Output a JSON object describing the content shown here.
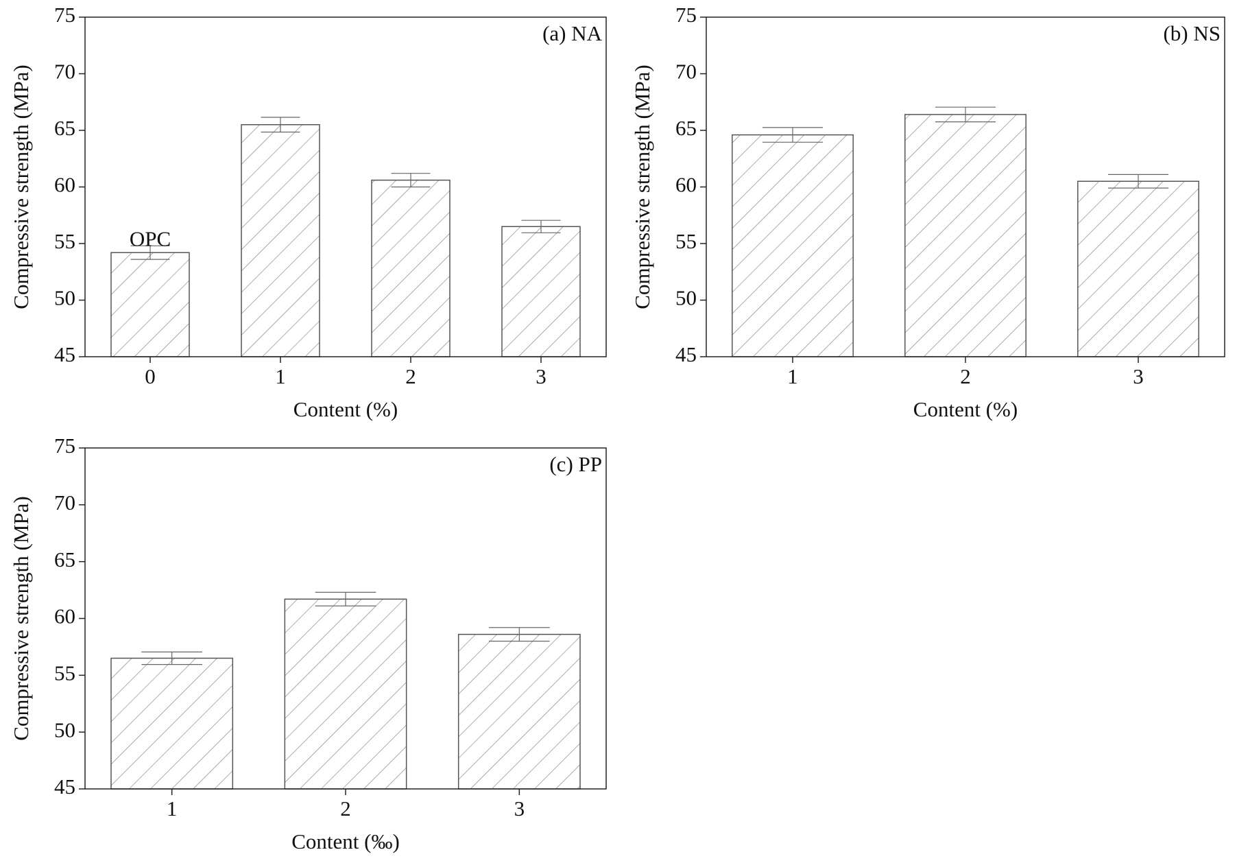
{
  "chart_data": [
    {
      "type": "bar",
      "title": "(a) NA",
      "annotation": "OPC",
      "x_label": "Content (%)",
      "y_label": "Compressive strength (MPa)",
      "categories": [
        "0",
        "1",
        "2",
        "3"
      ],
      "values": [
        54.2,
        65.5,
        60.6,
        56.5
      ],
      "errors": [
        0.6,
        0.65,
        0.6,
        0.55
      ],
      "color": "#555555",
      "ylim": [
        45,
        75
      ],
      "yticks": [
        45,
        50,
        55,
        60,
        65,
        70,
        75
      ]
    },
    {
      "type": "bar",
      "title": "(b) NS",
      "x_label": "Content (%)",
      "y_label": "Compressive strength (MPa)",
      "categories": [
        "1",
        "2",
        "3"
      ],
      "values": [
        64.6,
        66.4,
        60.5
      ],
      "errors": [
        0.65,
        0.65,
        0.6
      ],
      "color": "#555555",
      "ylim": [
        45,
        75
      ],
      "yticks": [
        45,
        50,
        55,
        60,
        65,
        70,
        75
      ]
    },
    {
      "type": "bar",
      "title": "(c) PP",
      "x_label": "Content (‰)",
      "y_label": "Compressive strength (MPa)",
      "categories": [
        "1",
        "2",
        "3"
      ],
      "values": [
        56.5,
        61.7,
        58.6
      ],
      "errors": [
        0.55,
        0.6,
        0.6
      ],
      "color": "#555555",
      "ylim": [
        45,
        75
      ],
      "yticks": [
        45,
        50,
        55,
        60,
        65,
        70,
        75
      ]
    }
  ]
}
